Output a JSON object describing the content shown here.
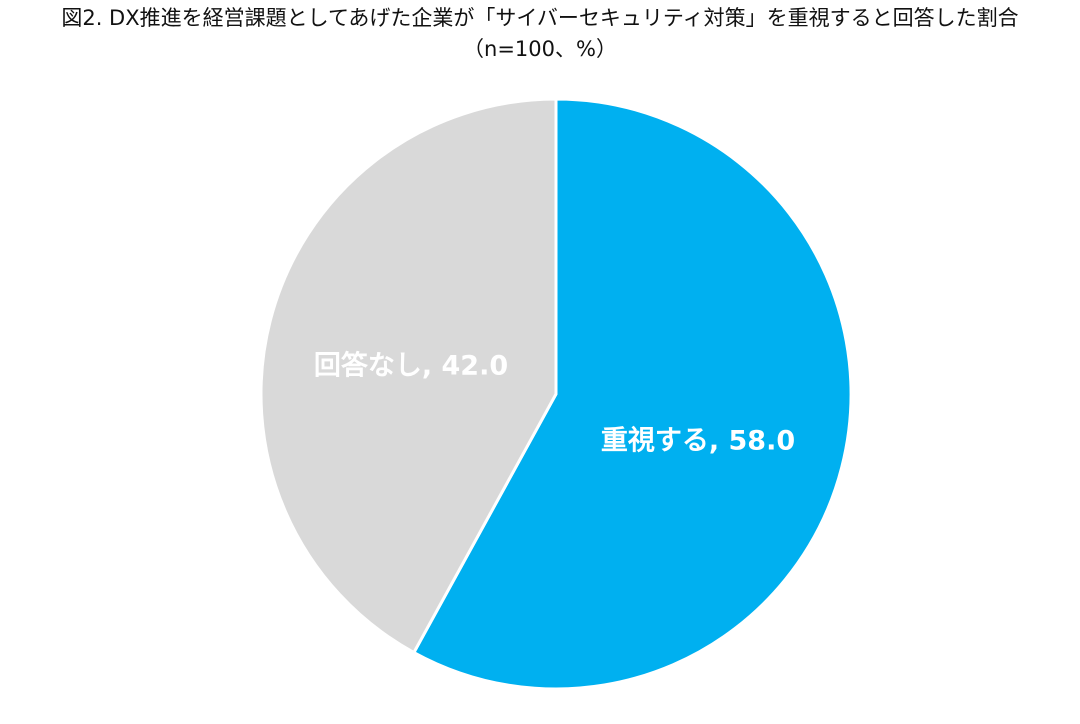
{
  "chart_data": {
    "type": "pie",
    "title": "図2. DX推進を経営課題としてあげた企業が「サイバーセキュリティ対策」を重視すると回答した割合",
    "subtitle": "（n=100、%）",
    "slices": [
      {
        "label": "重視する",
        "value": 58.0,
        "display": "重視する, 58.0",
        "color": "#00B0F0"
      },
      {
        "label": "回答なし",
        "value": 42.0,
        "display": "回答なし, 42.0",
        "color": "#D9D9D9"
      }
    ],
    "start": "12 o'clock",
    "direction": "clockwise",
    "legend": "none"
  }
}
